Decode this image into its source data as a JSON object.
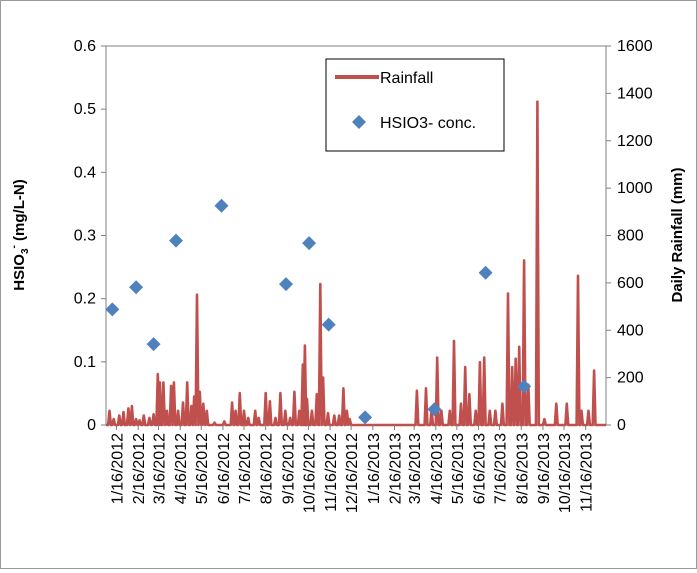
{
  "chart_data": {
    "type": "line",
    "title": "",
    "ylabel_left_main": "HSIO",
    "ylabel_left_sub": "3",
    "ylabel_left_sup": "-",
    "ylabel_left_rest": " (mg/L-N)",
    "ylabel_right": "Daily Rainfall (mm)",
    "y_left": {
      "min": 0,
      "max": 0.6,
      "ticks": [
        "0",
        "0.1",
        "0.2",
        "0.3",
        "0.4",
        "0.5",
        "0.6"
      ]
    },
    "y_right": {
      "min": 0,
      "max": 1600,
      "ticks": [
        "0",
        "200",
        "400",
        "600",
        "800",
        "1000",
        "1200",
        "1400",
        "1600"
      ]
    },
    "x_range": [
      "2012-01-01",
      "2013-12-15"
    ],
    "x_tick_labels": [
      "1/16/2012",
      "2/16/2012",
      "3/16/2012",
      "4/16/2012",
      "5/16/2012",
      "6/16/2012",
      "7/16/2012",
      "8/16/2012",
      "9/16/2012",
      "10/16/2012",
      "11/16/2012",
      "12/16/2012",
      "1/16/2013",
      "2/16/2013",
      "3/16/2013",
      "4/16/2013",
      "5/16/2013",
      "6/16/2013",
      "7/16/2013",
      "8/16/2013",
      "9/16/2013",
      "10/16/2013",
      "11/16/2013"
    ],
    "x_tick_dates": [
      "2012-01-16",
      "2012-02-16",
      "2012-03-16",
      "2012-04-16",
      "2012-05-16",
      "2012-06-16",
      "2012-07-16",
      "2012-08-16",
      "2012-09-16",
      "2012-10-16",
      "2012-11-16",
      "2012-12-16",
      "2013-01-16",
      "2013-02-16",
      "2013-03-16",
      "2013-04-16",
      "2013-05-16",
      "2013-06-16",
      "2013-07-16",
      "2013-08-16",
      "2013-09-16",
      "2013-10-16",
      "2013-11-16"
    ],
    "grid": false,
    "legend_position": "top-center",
    "series": [
      {
        "name": "Rainfall",
        "axis": "right",
        "style": "line",
        "color": "#c0504d",
        "points": [
          [
            "2012-01-06",
            60
          ],
          [
            "2012-01-12",
            25
          ],
          [
            "2012-01-20",
            40
          ],
          [
            "2012-01-26",
            55
          ],
          [
            "2012-02-02",
            70
          ],
          [
            "2012-02-07",
            80
          ],
          [
            "2012-02-13",
            25
          ],
          [
            "2012-02-18",
            20
          ],
          [
            "2012-02-24",
            40
          ],
          [
            "2012-03-03",
            30
          ],
          [
            "2012-03-09",
            45
          ],
          [
            "2012-03-15",
            215
          ],
          [
            "2012-03-18",
            180
          ],
          [
            "2012-03-23",
            180
          ],
          [
            "2012-03-28",
            60
          ],
          [
            "2012-04-03",
            165
          ],
          [
            "2012-04-07",
            180
          ],
          [
            "2012-04-13",
            60
          ],
          [
            "2012-04-20",
            95
          ],
          [
            "2012-04-26",
            180
          ],
          [
            "2012-05-02",
            80
          ],
          [
            "2012-05-06",
            120
          ],
          [
            "2012-05-10",
            550
          ],
          [
            "2012-05-14",
            140
          ],
          [
            "2012-05-19",
            90
          ],
          [
            "2012-05-24",
            60
          ],
          [
            "2012-06-04",
            10
          ],
          [
            "2012-06-18",
            15
          ],
          [
            "2012-06-29",
            95
          ],
          [
            "2012-07-04",
            60
          ],
          [
            "2012-07-10",
            135
          ],
          [
            "2012-07-16",
            60
          ],
          [
            "2012-07-22",
            30
          ],
          [
            "2012-08-01",
            60
          ],
          [
            "2012-08-06",
            30
          ],
          [
            "2012-08-16",
            135
          ],
          [
            "2012-08-22",
            100
          ],
          [
            "2012-08-30",
            30
          ],
          [
            "2012-09-06",
            135
          ],
          [
            "2012-09-13",
            60
          ],
          [
            "2012-09-20",
            30
          ],
          [
            "2012-09-26",
            140
          ],
          [
            "2012-10-03",
            60
          ],
          [
            "2012-10-08",
            255
          ],
          [
            "2012-10-11",
            335
          ],
          [
            "2012-10-14",
            110
          ],
          [
            "2012-10-21",
            60
          ],
          [
            "2012-10-28",
            130
          ],
          [
            "2012-11-02",
            595
          ],
          [
            "2012-11-06",
            200
          ],
          [
            "2012-11-13",
            50
          ],
          [
            "2012-11-22",
            40
          ],
          [
            "2012-11-29",
            40
          ],
          [
            "2012-12-05",
            155
          ],
          [
            "2012-12-10",
            60
          ],
          [
            "2012-12-14",
            25
          ],
          [
            "2013-03-20",
            145
          ],
          [
            "2013-04-02",
            155
          ],
          [
            "2013-04-10",
            60
          ],
          [
            "2013-04-18",
            285
          ],
          [
            "2013-04-24",
            60
          ],
          [
            "2013-05-06",
            60
          ],
          [
            "2013-05-12",
            355
          ],
          [
            "2013-05-22",
            90
          ],
          [
            "2013-05-28",
            245
          ],
          [
            "2013-06-03",
            130
          ],
          [
            "2013-06-12",
            60
          ],
          [
            "2013-06-18",
            265
          ],
          [
            "2013-06-24",
            285
          ],
          [
            "2013-07-02",
            60
          ],
          [
            "2013-07-10",
            60
          ],
          [
            "2013-07-20",
            90
          ],
          [
            "2013-07-28",
            555
          ],
          [
            "2013-08-03",
            245
          ],
          [
            "2013-08-08",
            280
          ],
          [
            "2013-08-13",
            330
          ],
          [
            "2013-08-20",
            695
          ],
          [
            "2013-08-26",
            170
          ],
          [
            "2013-09-08",
            1365
          ],
          [
            "2013-09-18",
            25
          ],
          [
            "2013-10-05",
            90
          ],
          [
            "2013-10-20",
            90
          ],
          [
            "2013-11-05",
            630
          ],
          [
            "2013-11-10",
            60
          ],
          [
            "2013-11-20",
            60
          ],
          [
            "2013-11-28",
            230
          ]
        ]
      },
      {
        "name": "HSIO3-  conc.",
        "axis": "left",
        "style": "marker",
        "marker": "diamond",
        "color": "#4f81bd",
        "points": [
          [
            "2012-01-10",
            0.183
          ],
          [
            "2012-02-13",
            0.218
          ],
          [
            "2012-03-09",
            0.128
          ],
          [
            "2012-04-10",
            0.292
          ],
          [
            "2012-06-14",
            0.347
          ],
          [
            "2012-09-14",
            0.223
          ],
          [
            "2012-10-17",
            0.288
          ],
          [
            "2012-11-14",
            0.159
          ],
          [
            "2013-01-05",
            0.012
          ],
          [
            "2013-04-14",
            0.025
          ],
          [
            "2013-06-26",
            0.241
          ],
          [
            "2013-08-20",
            0.061
          ]
        ]
      }
    ]
  }
}
